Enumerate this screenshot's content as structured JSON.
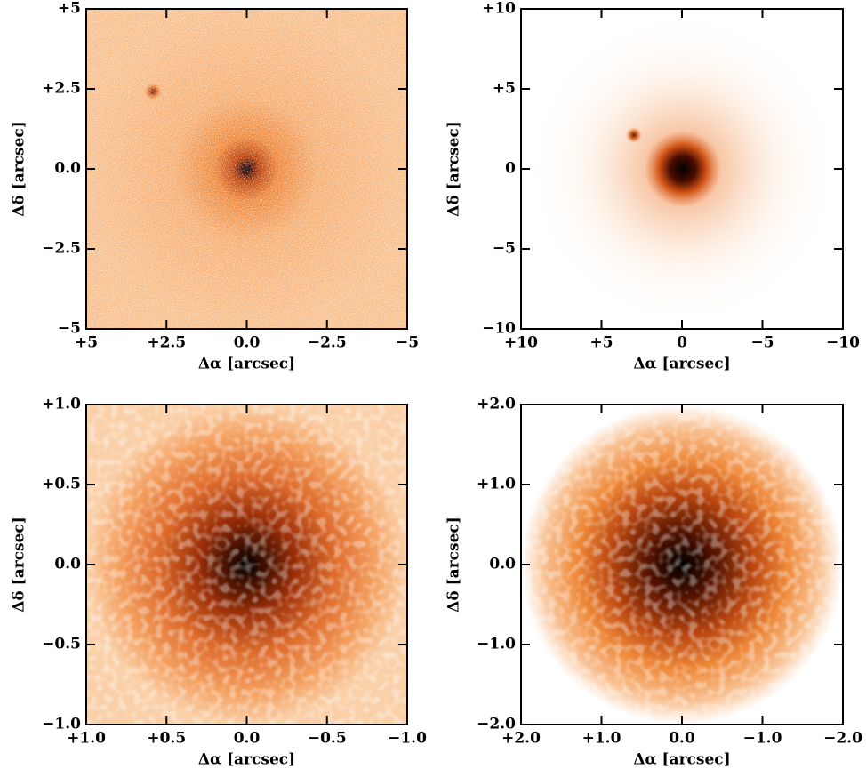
{
  "chart_data": [
    {
      "type": "image",
      "xlabel": "Δα [arcsec]",
      "ylabel": "Δδ [arcsec]",
      "xlim": [
        5,
        -5
      ],
      "ylim": [
        -5,
        5
      ],
      "xticks": [
        {
          "value": 5,
          "label": "+5"
        },
        {
          "value": 2.5,
          "label": "+2.5"
        },
        {
          "value": 0,
          "label": "0.0"
        },
        {
          "value": -2.5,
          "label": "−2.5"
        },
        {
          "value": -5,
          "label": "−5"
        }
      ],
      "yticks": [
        {
          "value": -5,
          "label": "−5"
        },
        {
          "value": -2.5,
          "label": "−2.5"
        },
        {
          "value": 0,
          "label": "0.0"
        },
        {
          "value": 2.5,
          "label": "+2.5"
        },
        {
          "value": 5,
          "label": "+5"
        }
      ]
    },
    {
      "type": "image",
      "xlabel": "Δα [arcsec]",
      "ylabel": "Δδ [arcsec]",
      "xlim": [
        10,
        -10
      ],
      "ylim": [
        -10,
        10
      ],
      "xticks": [
        {
          "value": 10,
          "label": "+10"
        },
        {
          "value": 5,
          "label": "+5"
        },
        0,
        {
          "value": -5,
          "label": "−5"
        },
        {
          "value": -10,
          "label": "−10"
        }
      ],
      "yticks": [
        {
          "value": -10,
          "label": "−10"
        },
        {
          "value": -5,
          "label": "−5"
        },
        0,
        {
          "value": 5,
          "label": "+5"
        },
        {
          "value": 10,
          "label": "+10"
        }
      ]
    },
    {
      "type": "image",
      "xlabel": "Δα [arcsec]",
      "ylabel": "Δδ [arcsec]",
      "xlim": [
        1,
        -1
      ],
      "ylim": [
        -1,
        1
      ],
      "xticks": [
        {
          "value": 1,
          "label": "+1.0"
        },
        {
          "value": 0.5,
          "label": "+0.5"
        },
        {
          "value": 0,
          "label": "0.0"
        },
        {
          "value": -0.5,
          "label": "−0.5"
        },
        {
          "value": -1,
          "label": "−1.0"
        }
      ],
      "yticks": [
        {
          "value": -1,
          "label": "−1.0"
        },
        {
          "value": -0.5,
          "label": "−0.5"
        },
        {
          "value": 0,
          "label": "0.0"
        },
        {
          "value": 0.5,
          "label": "+0.5"
        },
        {
          "value": 1,
          "label": "+1.0"
        }
      ]
    },
    {
      "type": "image",
      "xlabel": "Δα [arcsec]",
      "ylabel": "Δδ [arcsec]",
      "xlim": [
        2,
        -2
      ],
      "ylim": [
        -2,
        2
      ],
      "xticks": [
        {
          "value": 2,
          "label": "+2.0"
        },
        {
          "value": 1,
          "label": "+1.0"
        },
        {
          "value": 0,
          "label": "0.0"
        },
        {
          "value": -1,
          "label": "−1.0"
        },
        {
          "value": -2,
          "label": "−2.0"
        }
      ],
      "yticks": [
        {
          "value": -2,
          "label": "−2.0"
        },
        {
          "value": -1,
          "label": "−1.0"
        },
        {
          "value": 0,
          "label": "0.0"
        },
        {
          "value": 1,
          "label": "+1.0"
        },
        {
          "value": 2,
          "label": "+2.0"
        }
      ]
    }
  ]
}
